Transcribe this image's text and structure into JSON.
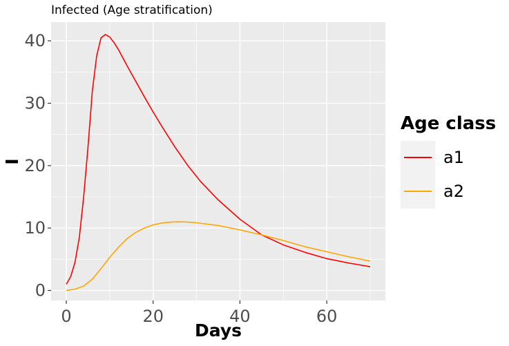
{
  "chart_data": {
    "type": "line",
    "title": "Infected (Age stratification)",
    "xlabel": "Days",
    "ylabel": "I",
    "xlim": [
      -3.5,
      73.5
    ],
    "ylim": [
      -1.6,
      43.0
    ],
    "xticks": [
      0,
      20,
      40,
      60
    ],
    "yticks": [
      0,
      10,
      20,
      30,
      40
    ],
    "grid": true,
    "legend": {
      "title": "Age class",
      "position": "right"
    },
    "series": [
      {
        "name": "a1",
        "color": "#FF0000",
        "x": [
          0,
          1,
          2,
          3,
          4,
          5,
          6,
          7,
          8,
          9,
          10,
          11,
          12,
          14,
          16,
          18,
          20,
          22,
          25,
          28,
          31,
          35,
          40,
          45,
          50,
          55,
          60,
          65,
          70
        ],
        "y": [
          1.0,
          2.2,
          4.5,
          8.5,
          15.0,
          23.0,
          32.0,
          37.6,
          40.5,
          41.0,
          40.6,
          39.7,
          38.6,
          36.0,
          33.5,
          31.0,
          28.6,
          26.3,
          23.0,
          20.0,
          17.4,
          14.5,
          11.4,
          8.9,
          7.3,
          6.1,
          5.1,
          4.4,
          3.8
        ]
      },
      {
        "name": "a2",
        "color": "#FFA500",
        "x": [
          0,
          2,
          4,
          6,
          8,
          10,
          12,
          14,
          16,
          18,
          20,
          22,
          24,
          26,
          28,
          30,
          35,
          40,
          45,
          50,
          55,
          60,
          65,
          70
        ],
        "y": [
          0.0,
          0.2,
          0.7,
          1.8,
          3.5,
          5.3,
          6.9,
          8.3,
          9.3,
          10.0,
          10.5,
          10.8,
          10.95,
          11.0,
          10.95,
          10.85,
          10.4,
          9.7,
          8.9,
          8.0,
          7.0,
          6.2,
          5.4,
          4.7
        ]
      }
    ]
  }
}
